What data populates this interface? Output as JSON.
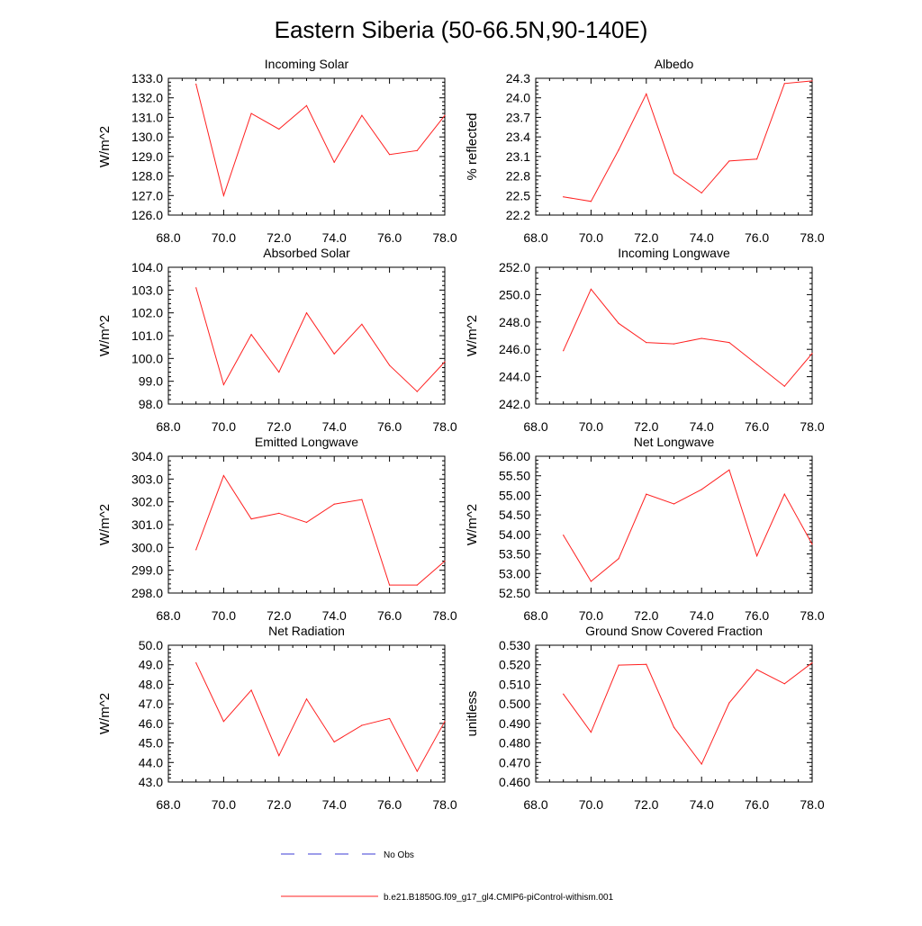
{
  "figure_title": "Eastern Siberia (50-66.5N,90-140E)",
  "legend": {
    "entries": [
      {
        "label": "No Obs",
        "color": "#3b3bd6",
        "dashed": true
      },
      {
        "label": "b.e21.B1850G.f09_g17_gl4.CMIP6-piControl-withism.001",
        "color": "#ff2020",
        "dashed": false
      }
    ]
  },
  "chart_data": [
    {
      "type": "line",
      "title": "Incoming Solar",
      "ylabel": "W/m^2",
      "xlim": [
        68,
        78
      ],
      "x_ticks": [
        "68.0",
        "70.0",
        "72.0",
        "74.0",
        "76.0",
        "78.0"
      ],
      "ylim": [
        126,
        133
      ],
      "y_ticks": [
        "126.0",
        "127.0",
        "128.0",
        "129.0",
        "130.0",
        "131.0",
        "132.0",
        "133.0"
      ],
      "series": [
        {
          "name": "b.e21.B1850G.f09_g17_gl4.CMIP6-piControl-withism.001",
          "color": "#ff2020",
          "x": [
            69,
            70,
            71,
            72,
            73,
            74,
            75,
            76,
            77,
            78
          ],
          "y": [
            132.7,
            127.0,
            131.2,
            130.4,
            131.6,
            128.7,
            131.1,
            129.1,
            129.3,
            131.1
          ]
        }
      ]
    },
    {
      "type": "line",
      "title": "Albedo",
      "ylabel": "% reflected",
      "xlim": [
        68,
        78
      ],
      "x_ticks": [
        "68.0",
        "70.0",
        "72.0",
        "74.0",
        "76.0",
        "78.0"
      ],
      "ylim": [
        22.2,
        24.3
      ],
      "y_ticks": [
        "22.2",
        "22.5",
        "22.8",
        "23.1",
        "23.4",
        "23.7",
        "24.0",
        "24.3"
      ],
      "series": [
        {
          "name": "b.e21.B1850G.f09_g17_gl4.CMIP6-piControl-withism.001",
          "color": "#ff2020",
          "x": [
            69,
            70,
            71,
            72,
            73,
            74,
            75,
            76,
            77,
            78
          ],
          "y": [
            22.48,
            22.41,
            23.2,
            24.06,
            22.84,
            22.54,
            23.03,
            23.06,
            24.22,
            24.26
          ]
        }
      ]
    },
    {
      "type": "line",
      "title": "Absorbed Solar",
      "ylabel": "W/m^2",
      "xlim": [
        68,
        78
      ],
      "x_ticks": [
        "68.0",
        "70.0",
        "72.0",
        "74.0",
        "76.0",
        "78.0"
      ],
      "ylim": [
        98,
        104
      ],
      "y_ticks": [
        "98.0",
        "99.0",
        "100.0",
        "101.0",
        "102.0",
        "103.0",
        "104.0"
      ],
      "series": [
        {
          "name": "b.e21.B1850G.f09_g17_gl4.CMIP6-piControl-withism.001",
          "color": "#ff2020",
          "x": [
            69,
            70,
            71,
            72,
            73,
            74,
            75,
            76,
            77,
            78
          ],
          "y": [
            103.1,
            98.85,
            101.05,
            99.4,
            102.0,
            100.2,
            101.5,
            99.7,
            98.55,
            99.85
          ]
        }
      ]
    },
    {
      "type": "line",
      "title": "Incoming Longwave",
      "ylabel": "W/m^2",
      "xlim": [
        68,
        78
      ],
      "x_ticks": [
        "68.0",
        "70.0",
        "72.0",
        "74.0",
        "76.0",
        "78.0"
      ],
      "ylim": [
        242,
        252
      ],
      "y_ticks": [
        "242.0",
        "244.0",
        "246.0",
        "248.0",
        "250.0",
        "252.0"
      ],
      "series": [
        {
          "name": "b.e21.B1850G.f09_g17_gl4.CMIP6-piControl-withism.001",
          "color": "#ff2020",
          "x": [
            69,
            70,
            71,
            72,
            73,
            74,
            75,
            76,
            77,
            78
          ],
          "y": [
            245.9,
            250.4,
            247.9,
            246.5,
            246.4,
            246.8,
            246.5,
            244.9,
            243.3,
            245.7
          ]
        }
      ]
    },
    {
      "type": "line",
      "title": "Emitted Longwave",
      "ylabel": "W/m^2",
      "xlim": [
        68,
        78
      ],
      "x_ticks": [
        "68.0",
        "70.0",
        "72.0",
        "74.0",
        "76.0",
        "78.0"
      ],
      "ylim": [
        298,
        304
      ],
      "y_ticks": [
        "298.0",
        "299.0",
        "300.0",
        "301.0",
        "302.0",
        "303.0",
        "304.0"
      ],
      "series": [
        {
          "name": "b.e21.B1850G.f09_g17_gl4.CMIP6-piControl-withism.001",
          "color": "#ff2020",
          "x": [
            69,
            70,
            71,
            72,
            73,
            74,
            75,
            76,
            77,
            78
          ],
          "y": [
            299.9,
            303.15,
            301.25,
            301.5,
            301.1,
            301.9,
            302.1,
            298.35,
            298.35,
            299.4
          ]
        }
      ]
    },
    {
      "type": "line",
      "title": "Net Longwave",
      "ylabel": "W/m^2",
      "xlim": [
        68,
        78
      ],
      "x_ticks": [
        "68.0",
        "70.0",
        "72.0",
        "74.0",
        "76.0",
        "78.0"
      ],
      "ylim": [
        52.5,
        56.0
      ],
      "y_ticks": [
        "52.50",
        "53.00",
        "53.50",
        "54.00",
        "54.50",
        "55.00",
        "55.50",
        "56.00"
      ],
      "series": [
        {
          "name": "b.e21.B1850G.f09_g17_gl4.CMIP6-piControl-withism.001",
          "color": "#ff2020",
          "x": [
            69,
            70,
            71,
            72,
            73,
            74,
            75,
            76,
            77,
            78
          ],
          "y": [
            53.98,
            52.8,
            53.38,
            55.03,
            54.78,
            55.15,
            55.65,
            53.45,
            55.03,
            53.75
          ]
        }
      ]
    },
    {
      "type": "line",
      "title": "Net Radiation",
      "ylabel": "W/m^2",
      "xlim": [
        68,
        78
      ],
      "x_ticks": [
        "68.0",
        "70.0",
        "72.0",
        "74.0",
        "76.0",
        "78.0"
      ],
      "ylim": [
        43,
        50
      ],
      "y_ticks": [
        "43.0",
        "44.0",
        "45.0",
        "46.0",
        "47.0",
        "48.0",
        "49.0",
        "50.0"
      ],
      "series": [
        {
          "name": "b.e21.B1850G.f09_g17_gl4.CMIP6-piControl-withism.001",
          "color": "#ff2020",
          "x": [
            69,
            70,
            71,
            72,
            73,
            74,
            75,
            76,
            77,
            78
          ],
          "y": [
            49.1,
            46.1,
            47.7,
            44.35,
            47.25,
            45.05,
            45.9,
            46.25,
            43.55,
            46.1
          ]
        }
      ]
    },
    {
      "type": "line",
      "title": "Ground Snow Covered Fraction",
      "ylabel": "unitless",
      "xlim": [
        68,
        78
      ],
      "x_ticks": [
        "68.0",
        "70.0",
        "72.0",
        "74.0",
        "76.0",
        "78.0"
      ],
      "ylim": [
        0.46,
        0.53
      ],
      "y_ticks": [
        "0.460",
        "0.470",
        "0.480",
        "0.490",
        "0.500",
        "0.510",
        "0.520",
        "0.530"
      ],
      "series": [
        {
          "name": "b.e21.B1850G.f09_g17_gl4.CMIP6-piControl-withism.001",
          "color": "#ff2020",
          "x": [
            69,
            70,
            71,
            72,
            73,
            74,
            75,
            76,
            77,
            78
          ],
          "y": [
            0.505,
            0.4855,
            0.5198,
            0.5202,
            0.488,
            0.4692,
            0.5005,
            0.5175,
            0.5103,
            0.521
          ]
        }
      ]
    }
  ]
}
